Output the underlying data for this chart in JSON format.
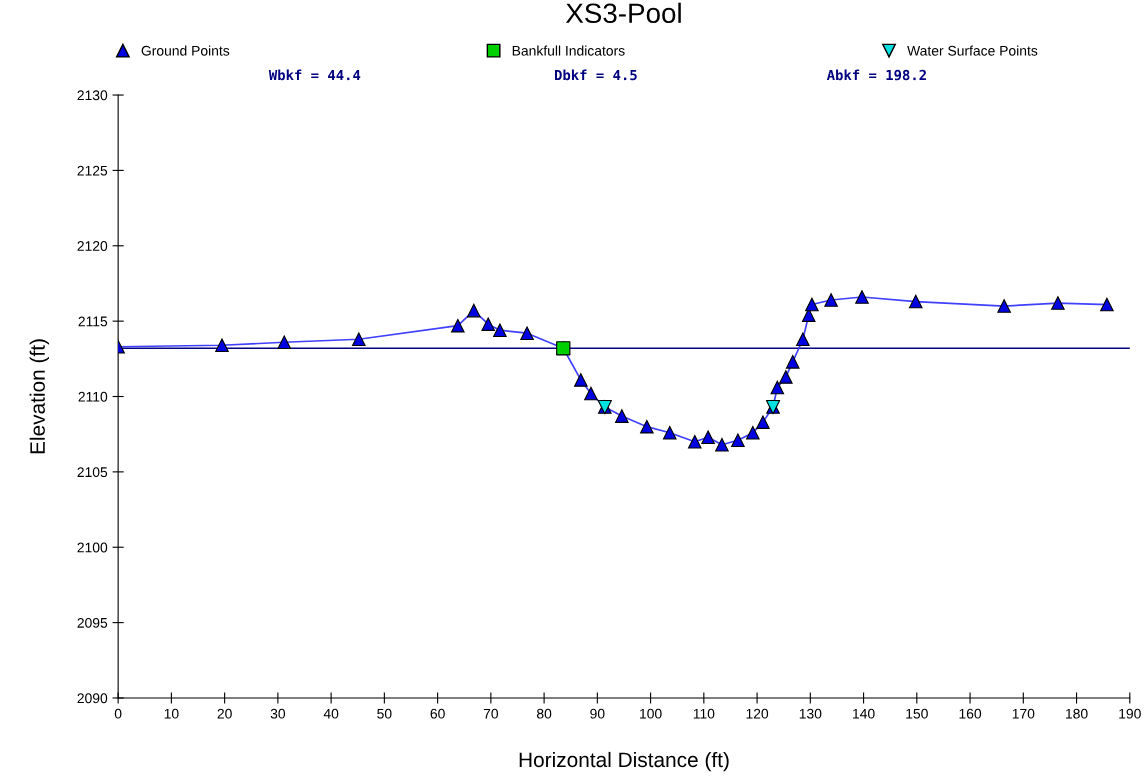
{
  "chart_data": {
    "type": "line",
    "title": "XS3-Pool",
    "xlabel": "Horizontal Distance (ft)",
    "ylabel": "Elevation (ft)",
    "annotations": [
      "Wbkf = 44.4",
      "Dbkf = 4.5",
      "Abkf = 198.2"
    ],
    "series": [
      {
        "name": "Ground Points",
        "marker": "triangle",
        "color": "#0000e0",
        "x": [
          0,
          19.5,
          31.2,
          45.2,
          63.8,
          66.8,
          69.5,
          71.7,
          76.8,
          83.6,
          86.9,
          88.8,
          91.4,
          94.6,
          99.3,
          103.6,
          108.3,
          110.8,
          113.4,
          116.4,
          119.2,
          121.1,
          123.0,
          123.8,
          125.4,
          126.7,
          128.6,
          129.7,
          130.3,
          133.9,
          139.7,
          149.8,
          166.4,
          176.5,
          185.7
        ],
        "values": [
          2113.3,
          2113.4,
          2113.6,
          2113.8,
          2114.7,
          2115.7,
          2114.8,
          2114.4,
          2114.2,
          2113.2,
          2111.1,
          2110.2,
          2109.3,
          2108.7,
          2108.0,
          2107.6,
          2107.0,
          2107.3,
          2106.8,
          2107.1,
          2107.6,
          2108.3,
          2109.3,
          2110.6,
          2111.3,
          2112.3,
          2113.8,
          2115.4,
          2116.1,
          2116.4,
          2116.6,
          2116.3,
          2116.0,
          2116.2,
          2116.1
        ]
      },
      {
        "name": "Bankfull Indicators",
        "type": "scatter",
        "marker": "square",
        "color": "#00d000",
        "x": [
          83.6
        ],
        "values": [
          2113.2
        ]
      },
      {
        "name": "Water Surface Points",
        "type": "scatter",
        "marker": "triangle_down",
        "color": "#00e0e0",
        "x": [
          91.4,
          123.0
        ],
        "values": [
          2109.3,
          2109.3
        ]
      }
    ],
    "ref_lines": [
      {
        "axis": "y",
        "value": 2113.2,
        "color": "#000080",
        "line_style": "solid"
      }
    ],
    "xlim": [
      0,
      190
    ],
    "xticks": [
      0,
      10,
      20,
      30,
      40,
      50,
      60,
      70,
      80,
      90,
      100,
      110,
      120,
      130,
      140,
      150,
      160,
      170,
      180,
      190
    ],
    "ylim": [
      2090,
      2130
    ],
    "yticks": [
      2090,
      2095,
      2100,
      2105,
      2110,
      2115,
      2120,
      2125,
      2130
    ],
    "grid": false,
    "legend": "top"
  }
}
